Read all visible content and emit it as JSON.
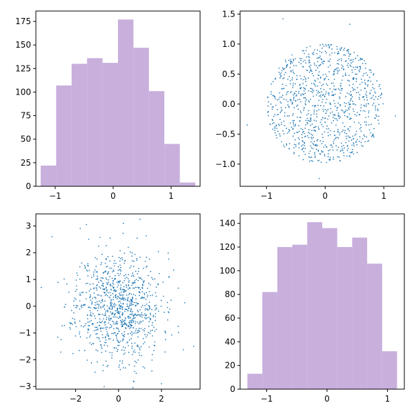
{
  "figure": {
    "background": "#ffffff"
  },
  "colors": {
    "hist": "#c8afdc",
    "scatter": "#1f77b4",
    "axes": "#000000"
  },
  "chart_data": [
    {
      "type": "bar",
      "subtype": "histogram",
      "position": "top-left",
      "bins": [
        {
          "x0": -1.25,
          "x1": -0.983,
          "count": 22
        },
        {
          "x0": -0.983,
          "x1": -0.717,
          "count": 107
        },
        {
          "x0": -0.717,
          "x1": -0.45,
          "count": 130
        },
        {
          "x0": -0.45,
          "x1": -0.183,
          "count": 136
        },
        {
          "x0": -0.183,
          "x1": 0.083,
          "count": 131
        },
        {
          "x0": 0.083,
          "x1": 0.35,
          "count": 177
        },
        {
          "x0": 0.35,
          "x1": 0.617,
          "count": 147
        },
        {
          "x0": 0.617,
          "x1": 0.883,
          "count": 101
        },
        {
          "x0": 0.883,
          "x1": 1.15,
          "count": 45
        },
        {
          "x0": 1.15,
          "x1": 1.417,
          "count": 4
        }
      ],
      "xlim": [
        -1.333,
        1.5
      ],
      "ylim": [
        0,
        186
      ],
      "xticks": [
        -1,
        0,
        1
      ],
      "xtick_labels": [
        "−1",
        "0",
        "1"
      ],
      "yticks": [
        0,
        25,
        50,
        75,
        100,
        125,
        150,
        175
      ],
      "ytick_labels": [
        "0",
        "25",
        "50",
        "75",
        "100",
        "125",
        "150",
        "175"
      ],
      "title": "",
      "xlabel": "",
      "ylabel": "",
      "color": "#c8afdc",
      "grid": false
    },
    {
      "type": "scatter",
      "position": "top-right",
      "description_of_distribution": "uniform within unit disk, ~1000 points",
      "n_points": 1000,
      "distribution": "disk",
      "radius": 1.0,
      "seed": 7,
      "extra_points": [
        [
          -0.72,
          1.42
        ],
        [
          0.42,
          1.33
        ],
        [
          -0.1,
          -1.24
        ],
        [
          1.2,
          -0.2
        ],
        [
          -1.33,
          -0.35
        ]
      ],
      "xlim": [
        -1.45,
        1.35
      ],
      "ylim": [
        -1.37,
        1.55
      ],
      "xticks": [
        -1,
        0,
        1
      ],
      "xtick_labels": [
        "−1",
        "0",
        "1"
      ],
      "yticks": [
        -1.0,
        -0.5,
        0.0,
        0.5,
        1.0,
        1.5
      ],
      "ytick_labels": [
        "−1.0",
        "−0.5",
        "0.0",
        "0.5",
        "1.0",
        "1.5"
      ],
      "title": "",
      "xlabel": "",
      "ylabel": "",
      "color": "#1f77b4",
      "marker_size": 1.5,
      "grid": false
    },
    {
      "type": "scatter",
      "position": "bottom-left",
      "description_of_distribution": "standard bivariate normal, ~1000 points",
      "n_points": 1000,
      "distribution": "normal",
      "sigma": 1.0,
      "seed": 11,
      "extra_points": [
        [
          -3.6,
          0.7
        ],
        [
          -3.1,
          2.6
        ],
        [
          1.0,
          3.25
        ],
        [
          3.5,
          -1.5
        ],
        [
          0.7,
          -2.8
        ],
        [
          -1.5,
          3.05
        ],
        [
          2.0,
          -2.9
        ]
      ],
      "xlim": [
        -3.85,
        3.8
      ],
      "ylim": [
        -3.1,
        3.45
      ],
      "xticks": [
        -2,
        0,
        2
      ],
      "xtick_labels": [
        "−2",
        "0",
        "2"
      ],
      "yticks": [
        -3,
        -2,
        -1,
        0,
        1,
        2,
        3
      ],
      "ytick_labels": [
        "−3",
        "−2",
        "−1",
        "0",
        "1",
        "2",
        "3"
      ],
      "title": "",
      "xlabel": "",
      "ylabel": "",
      "color": "#1f77b4",
      "marker_size": 1.5,
      "grid": false
    },
    {
      "type": "bar",
      "subtype": "histogram",
      "position": "bottom-right",
      "bins": [
        {
          "x0": -1.32,
          "x1": -1.072,
          "count": 13
        },
        {
          "x0": -1.072,
          "x1": -0.824,
          "count": 82
        },
        {
          "x0": -0.824,
          "x1": -0.576,
          "count": 120
        },
        {
          "x0": -0.576,
          "x1": -0.328,
          "count": 122
        },
        {
          "x0": -0.328,
          "x1": -0.08,
          "count": 141
        },
        {
          "x0": -0.08,
          "x1": 0.168,
          "count": 136
        },
        {
          "x0": 0.168,
          "x1": 0.416,
          "count": 120
        },
        {
          "x0": 0.416,
          "x1": 0.664,
          "count": 128
        },
        {
          "x0": 0.664,
          "x1": 0.912,
          "count": 106
        },
        {
          "x0": 0.912,
          "x1": 1.16,
          "count": 32
        }
      ],
      "xlim": [
        -1.44,
        1.28
      ],
      "ylim": [
        0,
        148
      ],
      "xticks": [
        -1,
        0,
        1
      ],
      "xtick_labels": [
        "−1",
        "0",
        "1"
      ],
      "yticks": [
        0,
        20,
        40,
        60,
        80,
        100,
        120,
        140
      ],
      "ytick_labels": [
        "0",
        "20",
        "40",
        "60",
        "80",
        "100",
        "120",
        "140"
      ],
      "title": "",
      "xlabel": "",
      "ylabel": "",
      "color": "#c8afdc",
      "grid": false
    }
  ]
}
